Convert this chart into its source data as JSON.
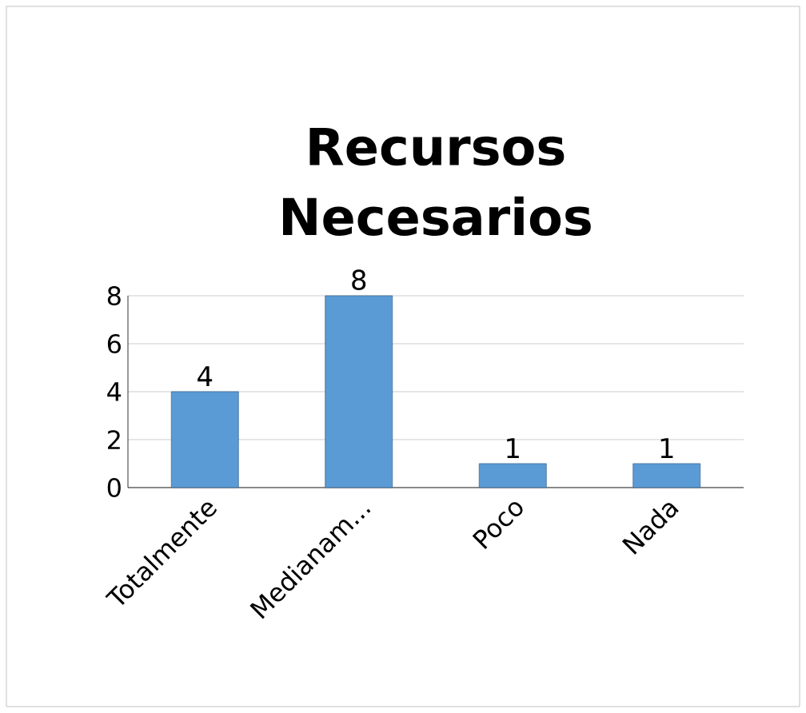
{
  "chart_data": {
    "type": "bar",
    "title": "Recursos Necesarios",
    "categories": [
      "Totalmente",
      "Medianam...",
      "Poco",
      "Nada"
    ],
    "values": [
      4,
      8,
      1,
      1
    ],
    "color": "#5b9bd5",
    "ylim": [
      0,
      8
    ],
    "yticks": [
      0,
      2,
      4,
      6,
      8
    ],
    "grid": "y",
    "data_labels": true
  }
}
